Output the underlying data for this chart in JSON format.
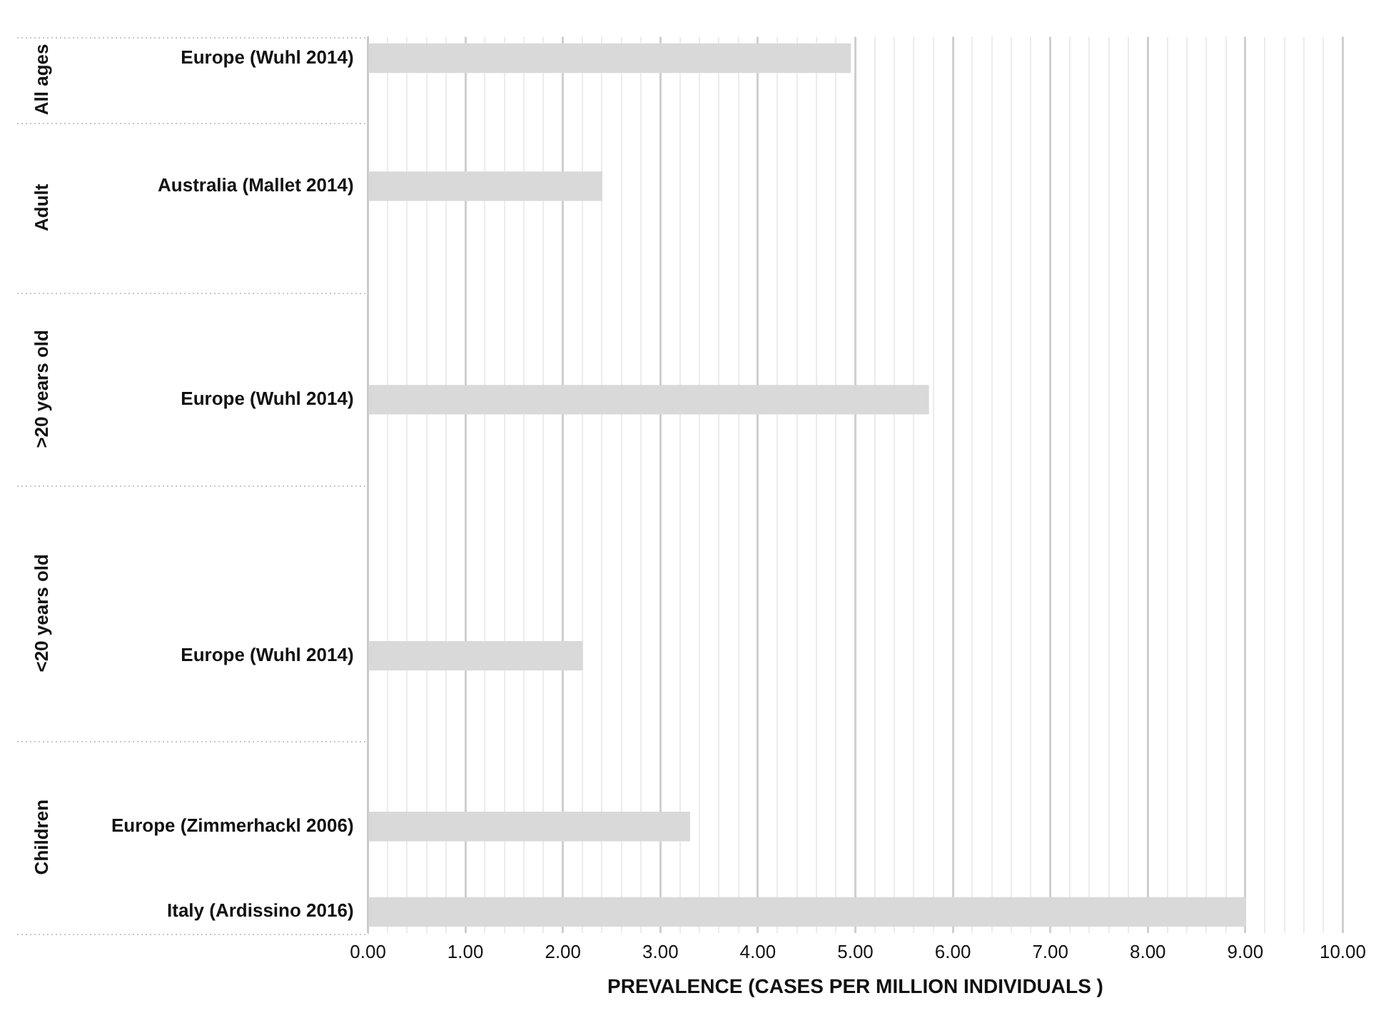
{
  "chart_data": {
    "type": "bar",
    "orientation": "horizontal",
    "categories": [
      "Europe (Wuhl 2014)",
      null,
      null,
      "Australia (Mallet 2014)",
      null,
      null,
      null,
      null,
      "Europe (Wuhl 2014)",
      null,
      null,
      null,
      null,
      null,
      "Europe (Wuhl 2014)",
      null,
      null,
      null,
      "Europe (Zimmerhackl 2006)",
      null,
      "Italy (Ardissino 2016)"
    ],
    "values": [
      4.95,
      null,
      null,
      2.4,
      null,
      null,
      null,
      null,
      5.75,
      null,
      null,
      null,
      null,
      null,
      2.2,
      null,
      null,
      null,
      3.3,
      null,
      9.0
    ],
    "color": "#d9d9d9",
    "xlabel": "PREVALENCE (CASES PER MILLION INDIVIDUALS )",
    "xlim": [
      0,
      10
    ],
    "xticks": [
      {
        "value": 0,
        "label": "0.00"
      },
      {
        "value": 0.2,
        "label": null
      },
      {
        "value": 0.4,
        "label": null
      },
      {
        "value": 0.6,
        "label": null
      },
      {
        "value": 0.8,
        "label": null
      },
      {
        "value": 1,
        "label": "1.00"
      },
      {
        "value": 1.2,
        "label": null
      },
      {
        "value": 1.4,
        "label": null
      },
      {
        "value": 1.6,
        "label": null
      },
      {
        "value": 1.8,
        "label": null
      },
      {
        "value": 2,
        "label": "2.00"
      },
      {
        "value": 2.2,
        "label": null
      },
      {
        "value": 2.4,
        "label": null
      },
      {
        "value": 2.6,
        "label": null
      },
      {
        "value": 2.8,
        "label": null
      },
      {
        "value": 3,
        "label": "3.00"
      },
      {
        "value": 3.2,
        "label": null
      },
      {
        "value": 3.4,
        "label": null
      },
      {
        "value": 3.6,
        "label": null
      },
      {
        "value": 3.8,
        "label": null
      },
      {
        "value": 4,
        "label": "4.00"
      },
      {
        "value": 4.2,
        "label": null
      },
      {
        "value": 4.4,
        "label": null
      },
      {
        "value": 4.6,
        "label": null
      },
      {
        "value": 4.8,
        "label": null
      },
      {
        "value": 5,
        "label": "5.00"
      },
      {
        "value": 5.2,
        "label": null
      },
      {
        "value": 5.4,
        "label": null
      },
      {
        "value": 5.6,
        "label": null
      },
      {
        "value": 5.8,
        "label": null
      },
      {
        "value": 6,
        "label": "6.00"
      },
      {
        "value": 6.2,
        "label": null
      },
      {
        "value": 6.4,
        "label": null
      },
      {
        "value": 6.6,
        "label": null
      },
      {
        "value": 6.8,
        "label": null
      },
      {
        "value": 7,
        "label": "7.00"
      },
      {
        "value": 7.2,
        "label": null
      },
      {
        "value": 7.4,
        "label": null
      },
      {
        "value": 7.6,
        "label": null
      },
      {
        "value": 7.8,
        "label": null
      },
      {
        "value": 8,
        "label": "8.00"
      },
      {
        "value": 8.2,
        "label": null
      },
      {
        "value": 8.4,
        "label": null
      },
      {
        "value": 8.6,
        "label": null
      },
      {
        "value": 8.8,
        "label": null
      },
      {
        "value": 9,
        "label": "9.00"
      },
      {
        "value": 9.2,
        "label": null
      },
      {
        "value": 9.4,
        "label": null
      },
      {
        "value": 9.6,
        "label": null
      },
      {
        "value": 9.8,
        "label": null
      },
      {
        "value": 10,
        "label": "10.00"
      }
    ],
    "grid": "x",
    "annotations": [
      "All ages",
      "Adult",
      ">20 years old",
      "<20 years old",
      "Children"
    ]
  }
}
